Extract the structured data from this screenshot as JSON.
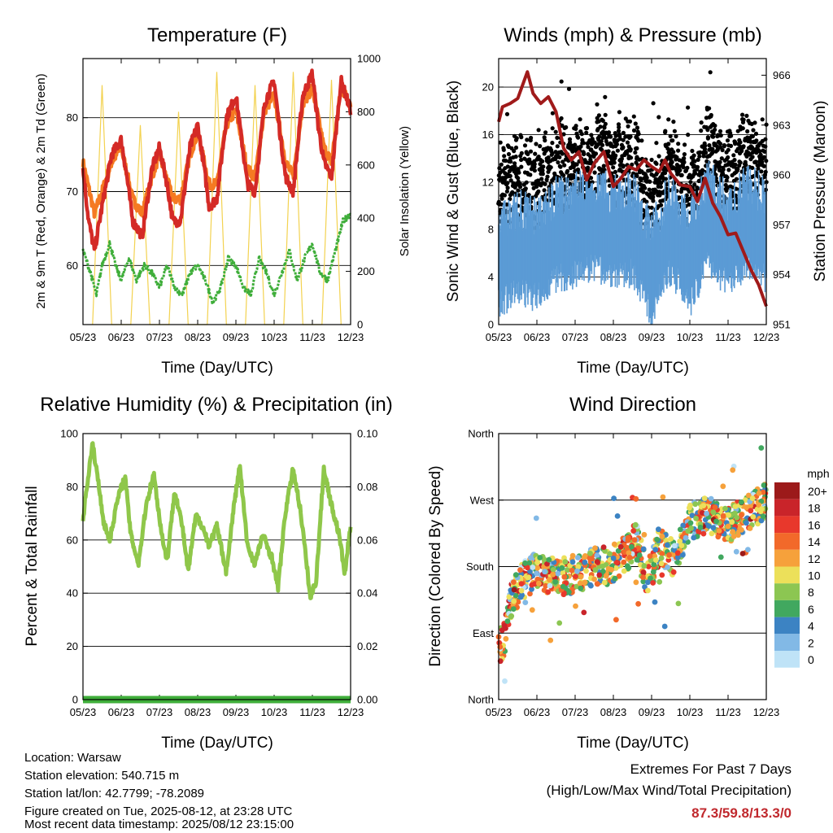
{
  "chart_data": [
    {
      "id": "temperature",
      "type": "line",
      "title": "Temperature (F)",
      "xlabel": "Time (Day/UTC)",
      "ylabel": "2m & 9m T (Red, Orange) & 2m Td (Green)",
      "ylabel_right": "Solar Insolation (Yellow)",
      "x_ticks": [
        "05/23",
        "06/23",
        "07/23",
        "08/23",
        "09/23",
        "10/23",
        "11/23",
        "12/23"
      ],
      "y_ticks": [
        60,
        70,
        80
      ],
      "ylim": [
        52,
        88
      ],
      "y2_ticks": [
        0,
        200,
        400,
        600,
        800,
        1000
      ],
      "y2lim": [
        0,
        1000
      ],
      "grid": "horizontal",
      "colors": {
        "t2m": "#d42a26",
        "t9m": "#f57a22",
        "td": "#3fae3a",
        "solar": "#f3d250"
      },
      "series": [
        {
          "axis": "left",
          "color": "#d42a26",
          "x": [
            0,
            0.15,
            0.3,
            0.5,
            0.75,
            1.0,
            1.15,
            1.3,
            1.55,
            1.8,
            2.0,
            2.2,
            2.35,
            2.55,
            2.8,
            3.0,
            3.15,
            3.3,
            3.5,
            3.75,
            4.0,
            4.15,
            4.3,
            4.5,
            4.75,
            5.0,
            5.15,
            5.3,
            5.5,
            5.75,
            6.0,
            6.15,
            6.3,
            6.5,
            6.75,
            7.0
          ],
          "values": [
            73,
            66,
            62,
            68,
            75,
            77,
            72,
            66,
            64,
            73,
            76,
            71,
            66,
            66,
            76,
            79,
            74,
            68,
            69,
            80,
            83,
            77,
            71,
            70,
            82,
            85,
            78,
            72,
            70,
            83,
            86,
            79,
            74,
            72,
            85,
            81
          ]
        },
        {
          "axis": "left",
          "color": "#f57a22",
          "x": [
            0,
            0.3,
            0.5,
            0.75,
            1.0,
            1.3,
            1.55,
            1.8,
            2.0,
            2.35,
            2.55,
            2.8,
            3.0,
            3.3,
            3.5,
            3.75,
            4.0,
            4.3,
            4.5,
            4.75,
            5.0,
            5.3,
            5.5,
            5.75,
            6.0,
            6.3,
            6.5,
            6.75,
            7.0
          ],
          "values": [
            74,
            67,
            70,
            74,
            76,
            69,
            67,
            72,
            75,
            69,
            69,
            75,
            78,
            71,
            71,
            79,
            81,
            73,
            72,
            81,
            83,
            74,
            72,
            82,
            84,
            76,
            74,
            84,
            82
          ]
        },
        {
          "axis": "left",
          "color": "#3fae3a",
          "x": [
            0,
            0.2,
            0.35,
            0.5,
            0.7,
            0.85,
            1.0,
            1.2,
            1.4,
            1.6,
            1.8,
            2.0,
            2.2,
            2.4,
            2.6,
            2.8,
            3.0,
            3.2,
            3.4,
            3.6,
            3.8,
            4.0,
            4.2,
            4.4,
            4.6,
            4.8,
            5.0,
            5.2,
            5.4,
            5.6,
            5.8,
            6.0,
            6.2,
            6.4,
            6.6,
            6.8,
            7.0
          ],
          "values": [
            62,
            59,
            56,
            60,
            63,
            60,
            58,
            61,
            58,
            60,
            59,
            57,
            60,
            57,
            56,
            59,
            60,
            58,
            55,
            57,
            61,
            60,
            57,
            56,
            61,
            59,
            56,
            59,
            62,
            58,
            61,
            63,
            59,
            58,
            62,
            66,
            67
          ]
        },
        {
          "axis": "right",
          "color": "#f3d250",
          "x": [
            0.25,
            0.5,
            0.75,
            1.25,
            1.5,
            1.75,
            2.25,
            2.5,
            2.75,
            3.25,
            3.5,
            3.75,
            4.25,
            4.5,
            4.75,
            5.25,
            5.5,
            5.75,
            6.25,
            6.5,
            6.75
          ],
          "values": [
            0,
            900,
            0,
            0,
            750,
            0,
            0,
            800,
            0,
            0,
            950,
            0,
            0,
            900,
            0,
            0,
            950,
            0,
            0,
            920,
            0
          ]
        }
      ]
    },
    {
      "id": "winds",
      "type": "scatter",
      "title": "Winds (mph) & Pressure (mb)",
      "xlabel": "Time (Day/UTC)",
      "ylabel": "Sonic Wind & Gust (Blue, Black)",
      "ylabel_right": "Station Pressure (Maroon)",
      "x_ticks": [
        "05/23",
        "06/23",
        "07/23",
        "08/23",
        "09/23",
        "10/23",
        "11/23",
        "12/23"
      ],
      "y_ticks": [
        0,
        4,
        8,
        12,
        16,
        20
      ],
      "ylim": [
        0,
        22.4
      ],
      "y2_ticks": [
        951,
        954,
        957,
        960,
        963,
        966
      ],
      "y2lim": [
        951,
        967
      ],
      "grid": "horizontal",
      "colors": {
        "wind": "#5b9bd5",
        "gust": "#000000",
        "pressure": "#a01a1a"
      },
      "series": [
        {
          "axis": "right",
          "color": "#a01a1a",
          "x": [
            0,
            0.1,
            0.3,
            0.5,
            0.75,
            0.9,
            1.1,
            1.3,
            1.5,
            1.7,
            1.9,
            2.1,
            2.3,
            2.5,
            2.75,
            3.0,
            3.2,
            3.4,
            3.6,
            3.8,
            4.0,
            4.2,
            4.35,
            4.5,
            4.75,
            5.0,
            5.2,
            5.4,
            5.6,
            5.8,
            6.0,
            6.2,
            6.4,
            6.6,
            6.8,
            7.0
          ],
          "values": [
            963.2,
            964.1,
            964.3,
            964.6,
            966.2,
            964.9,
            964.3,
            964.7,
            963.8,
            961.6,
            960.9,
            961.4,
            959.7,
            960.7,
            961.4,
            959.3,
            959.8,
            960.5,
            960.3,
            960.9,
            960.5,
            960.2,
            960.9,
            960.1,
            959.4,
            959.3,
            958.4,
            959.8,
            958.3,
            957.5,
            956.4,
            956.5,
            955.4,
            954.3,
            953.4,
            952.1
          ]
        }
      ]
    },
    {
      "id": "humidity",
      "type": "line",
      "title": "Relative Humidity (%) & Precipitation (in)",
      "xlabel": "Time (Day/UTC)",
      "ylabel": "Percent & Total Rainfall",
      "x_ticks": [
        "05/23",
        "06/23",
        "07/23",
        "08/23",
        "09/23",
        "10/23",
        "11/23",
        "12/23"
      ],
      "y_ticks": [
        0,
        20,
        40,
        60,
        80,
        100
      ],
      "ylim": [
        0,
        100
      ],
      "y2_ticks": [
        "0.00",
        "0.02",
        "0.04",
        "0.06",
        "0.08",
        "0.10"
      ],
      "y2lim": [
        0,
        0.1
      ],
      "grid": "horizontal",
      "colors": {
        "rh": "#8fc74a",
        "precip": "#3fae3a"
      },
      "series": [
        {
          "axis": "left",
          "color": "#8fc74a",
          "x": [
            0,
            0.1,
            0.25,
            0.4,
            0.55,
            0.7,
            0.9,
            1.1,
            1.25,
            1.45,
            1.65,
            1.85,
            2.05,
            2.2,
            2.4,
            2.6,
            2.75,
            2.95,
            3.1,
            3.3,
            3.5,
            3.75,
            3.95,
            4.1,
            4.3,
            4.5,
            4.7,
            4.95,
            5.1,
            5.3,
            5.5,
            5.7,
            5.95,
            6.1,
            6.3,
            6.5,
            6.7,
            6.85,
            7.0
          ],
          "values": [
            68,
            80,
            96,
            82,
            66,
            60,
            75,
            84,
            62,
            51,
            73,
            85,
            63,
            52,
            79,
            65,
            48,
            69,
            66,
            58,
            65,
            48,
            73,
            88,
            58,
            51,
            62,
            53,
            42,
            71,
            87,
            70,
            38,
            45,
            87,
            73,
            62,
            47,
            66
          ]
        },
        {
          "axis": "right",
          "color": "#3fae3a",
          "x": [
            0,
            7.0
          ],
          "values": [
            0,
            0
          ]
        }
      ]
    },
    {
      "id": "direction",
      "type": "scatter",
      "title": "Wind Direction",
      "xlabel": "Time (Day/UTC)",
      "ylabel": "Direction (Colored By Speed)",
      "x_ticks": [
        "05/23",
        "06/23",
        "07/23",
        "08/23",
        "09/23",
        "10/23",
        "11/23",
        "12/23"
      ],
      "y_ticks": [
        "North",
        "East",
        "South",
        "West",
        "North"
      ],
      "ylim": [
        0,
        360
      ],
      "grid": "horizontal",
      "legend": {
        "title": "mph",
        "placement": "right",
        "labels": [
          "20+",
          "18",
          "16",
          "14",
          "12",
          "10",
          "8",
          "6",
          "4",
          "2",
          "0"
        ],
        "colors": [
          "#9c1a1a",
          "#c9242a",
          "#e8382c",
          "#f2692a",
          "#f6a13b",
          "#ece05a",
          "#8cc652",
          "#41a85f",
          "#3c83c3",
          "#82b9e6",
          "#bfe3f7"
        ]
      }
    }
  ],
  "info": {
    "location": "Location: Warsaw",
    "elevation": "Station elevation: 540.715 m",
    "latlon": "Station lat/lon: 42.7799; -78.2089",
    "created": "Figure created on Tue, 2025-08-12, at 23:28 UTC",
    "timestamp": "Most recent data timestamp: 2025/08/12 23:15:00"
  },
  "extremes": {
    "title": "Extremes For Past 7 Days",
    "subtitle": "(High/Low/Max Wind/Total Precipitation)",
    "value": "87.3/59.8/13.3/0"
  }
}
